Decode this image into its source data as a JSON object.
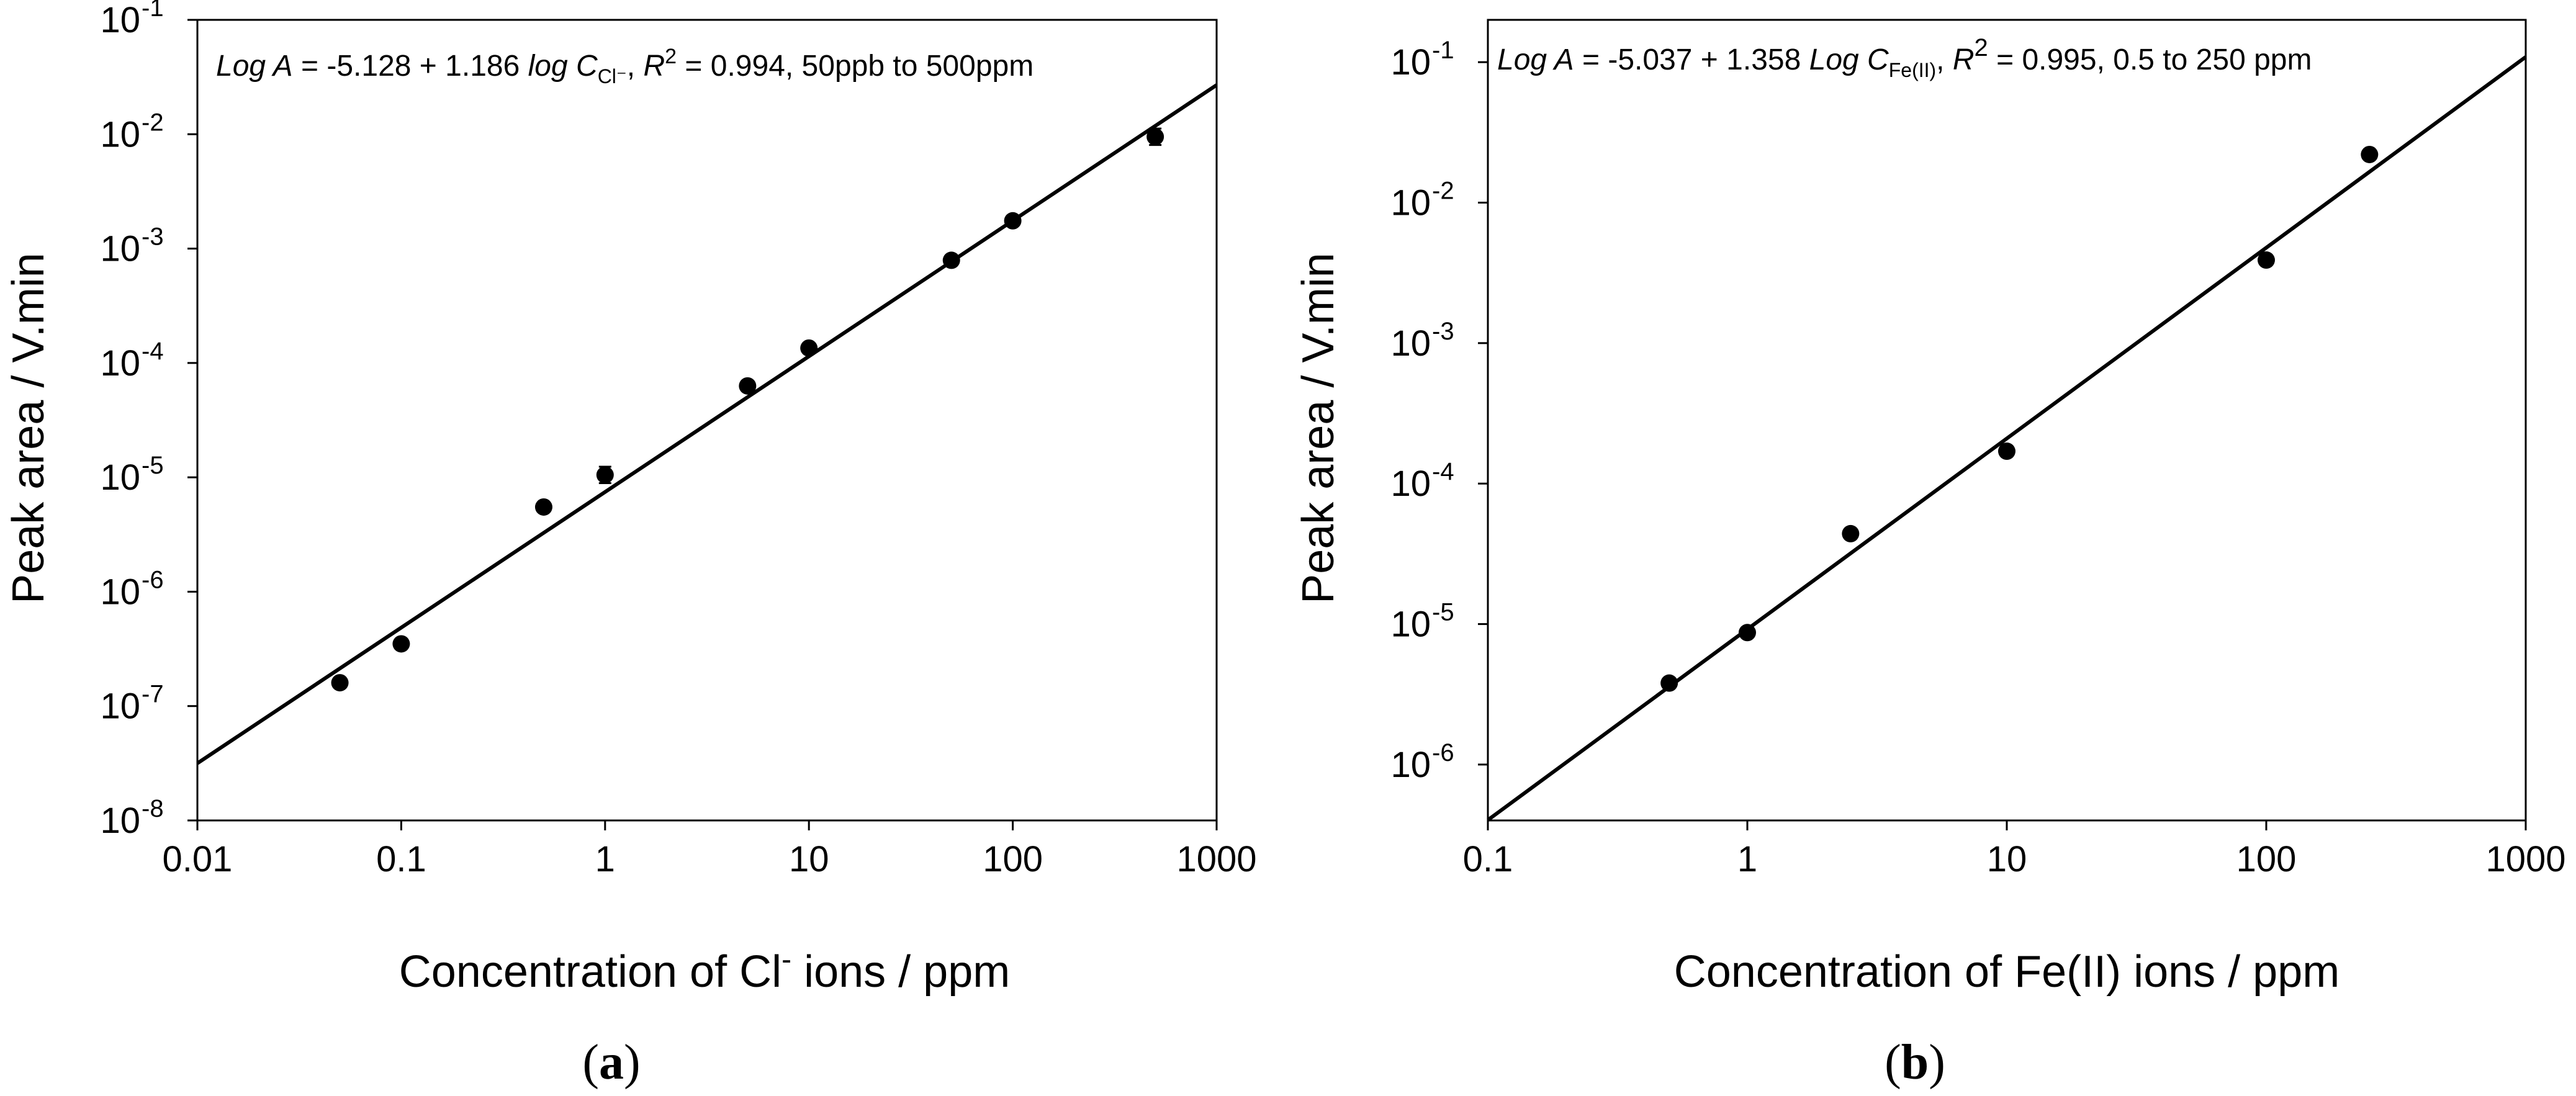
{
  "chart_data": [
    {
      "type": "scatter",
      "panel_label": "a",
      "x_scale": "log",
      "y_scale": "log",
      "xlim": [
        0.01,
        1000
      ],
      "ylim": [
        1e-08,
        0.1
      ],
      "x_ticks": [
        "0.01",
        "0.1",
        "1",
        "10",
        "100",
        "1000"
      ],
      "x_tick_values": [
        0.01,
        0.1,
        1,
        10,
        100,
        1000
      ],
      "y_tick_values": [
        1e-08,
        1e-07,
        1e-06,
        1e-05,
        0.0001,
        0.001,
        0.01,
        0.1
      ],
      "y_ticks": [
        {
          "base": "10",
          "exp": "-8"
        },
        {
          "base": "10",
          "exp": "-7"
        },
        {
          "base": "10",
          "exp": "-6"
        },
        {
          "base": "10",
          "exp": "-5"
        },
        {
          "base": "10",
          "exp": "-4"
        },
        {
          "base": "10",
          "exp": "-3"
        },
        {
          "base": "10",
          "exp": "-2"
        },
        {
          "base": "10",
          "exp": "-1"
        }
      ],
      "ylabel": "Peak area / V.min",
      "xlabel": {
        "prefix": "Concentration of Cl",
        "sup": "-",
        "suffix": " ions / ppm"
      },
      "equation": {
        "log_a": "Log A",
        "part1": " = -5.128 + 1.186 ",
        "log_c": "log C",
        "c_sub": "Cl⁻",
        "comma": ", ",
        "r": "R",
        "r_sup": "2",
        "rest": " = 0.994, 50ppb to 500ppm"
      },
      "fit": {
        "intercept": -5.128,
        "slope": 1.186
      },
      "points": {
        "x": [
          0.05,
          0.1,
          0.5,
          1,
          5,
          10,
          50,
          100,
          500
        ],
        "y": [
          1.6e-07,
          3.5e-07,
          5.5e-06,
          1.05e-05,
          6.3e-05,
          0.000135,
          0.00079,
          0.00175,
          0.0095
        ],
        "err_y_factor": [
          1.08,
          1.07,
          1.06,
          1.18,
          1.06,
          1.08,
          1.08,
          1.08,
          1.18
        ]
      }
    },
    {
      "type": "scatter",
      "panel_label": "b",
      "x_scale": "log",
      "y_scale": "log",
      "xlim": [
        0.1,
        1000
      ],
      "ylim": [
        4e-07,
        0.2
      ],
      "x_ticks": [
        "0.1",
        "1",
        "10",
        "100",
        "1000"
      ],
      "x_tick_values": [
        0.1,
        1,
        10,
        100,
        1000
      ],
      "y_tick_values": [
        1e-06,
        1e-05,
        0.0001,
        0.001,
        0.01,
        0.1
      ],
      "y_ticks": [
        {
          "base": "10",
          "exp": "-6"
        },
        {
          "base": "10",
          "exp": "-5"
        },
        {
          "base": "10",
          "exp": "-4"
        },
        {
          "base": "10",
          "exp": "-3"
        },
        {
          "base": "10",
          "exp": "-2"
        },
        {
          "base": "10",
          "exp": "-1"
        }
      ],
      "ylabel": "Peak area / V.min",
      "xlabel": {
        "prefix": "Concentration of Fe(II) ions / ppm",
        "sup": "",
        "suffix": ""
      },
      "equation": {
        "log_a": "Log A",
        "part1": " = -5.037 + 1.358 ",
        "log_c": "Log C",
        "c_sub": "Fe(II)",
        "comma": ", ",
        "r": "R",
        "r_sup": "2",
        "rest": " = 0.995, 0.5 to 250 ppm"
      },
      "fit": {
        "intercept": -5.037,
        "slope": 1.358
      },
      "points": {
        "x": [
          0.5,
          1,
          2.5,
          10,
          100,
          250
        ],
        "y": [
          3.8e-06,
          8.7e-06,
          4.4e-05,
          0.00017,
          0.0039,
          0.022
        ],
        "err_y_factor": [
          1.05,
          1.05,
          1.05,
          1.06,
          1.05,
          1.05
        ]
      }
    }
  ]
}
